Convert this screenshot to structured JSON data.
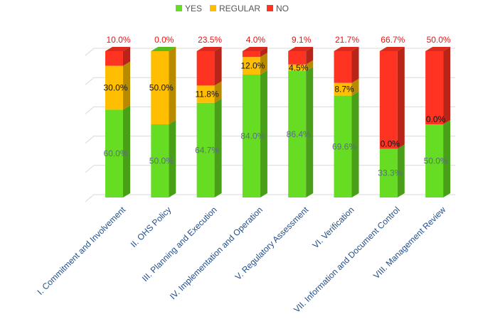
{
  "chart_data": {
    "type": "bar",
    "stacked": true,
    "three_d": true,
    "title": "",
    "xlabel": "",
    "ylabel": "",
    "ylim": [
      0,
      100
    ],
    "grid": true,
    "legend_position": "top",
    "categories": [
      "I. Commitment and Involvement",
      "II. OHS Policy",
      "III. Planning and Execution",
      "IV. Implementation and Operation",
      "V. Regulatory Assessment",
      "VI. Verification",
      "VII. Information and Document Control",
      "VIII. Management Review"
    ],
    "series": [
      {
        "name": "YES",
        "color": "#66dd22",
        "label_color": "#5a6a8a",
        "values": [
          60.0,
          50.0,
          64.7,
          84.0,
          86.4,
          69.6,
          33.3,
          50.0
        ],
        "labels": [
          "60.0%",
          "50.0%",
          "64.7%",
          "84.0%",
          "86.4%",
          "69.6%",
          "33.3%",
          "50.0%"
        ]
      },
      {
        "name": "REGULAR",
        "color": "#ffbf00",
        "label_color": "#111111",
        "values": [
          30.0,
          50.0,
          11.8,
          12.0,
          4.5,
          8.7,
          0.0,
          0.0
        ],
        "labels": [
          "30.0%",
          "50.0%",
          "11.8%",
          "12.0%",
          "4.5%",
          "8.7%",
          "0.0%",
          "0.0%"
        ]
      },
      {
        "name": "NO",
        "color": "#ff3322",
        "label_color": "#ee1111",
        "values": [
          10.0,
          0.0,
          23.5,
          4.0,
          9.1,
          21.7,
          66.7,
          50.0
        ],
        "labels": [
          "10.0%",
          "0.0%",
          "23.5%",
          "4.0%",
          "9.1%",
          "21.7%",
          "66.7%",
          "50.0%"
        ]
      }
    ]
  }
}
